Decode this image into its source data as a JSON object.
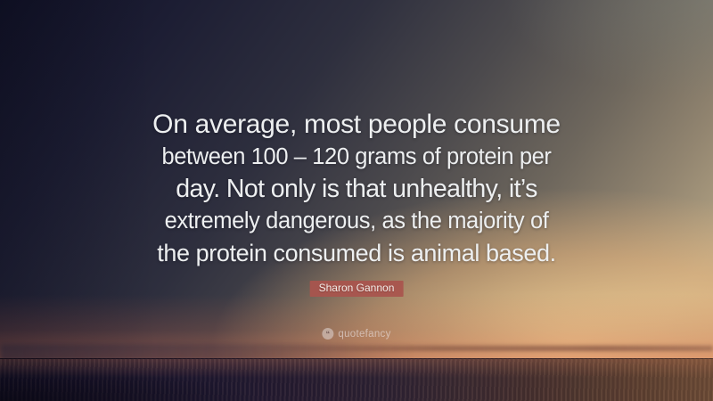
{
  "quote": {
    "lines": [
      "On average, most people consume",
      "between 100 – 120 grams of protein per",
      "day. Not only is that unhealthy, it’s",
      "extremely dangerous, as the majority of",
      "the protein consumed is animal based."
    ],
    "full_text": "On average, most people consume between 100 – 120 grams of protein per day. Not only is that unhealthy, it’s extremely dangerous, as the majority of the protein consumed is animal based.",
    "text_color": "#edeff0"
  },
  "attribution": {
    "author": "Sharon Gannon",
    "badge_color": "#a9544d"
  },
  "watermark": {
    "brand": "quotefancy",
    "icon_glyph": "””"
  }
}
